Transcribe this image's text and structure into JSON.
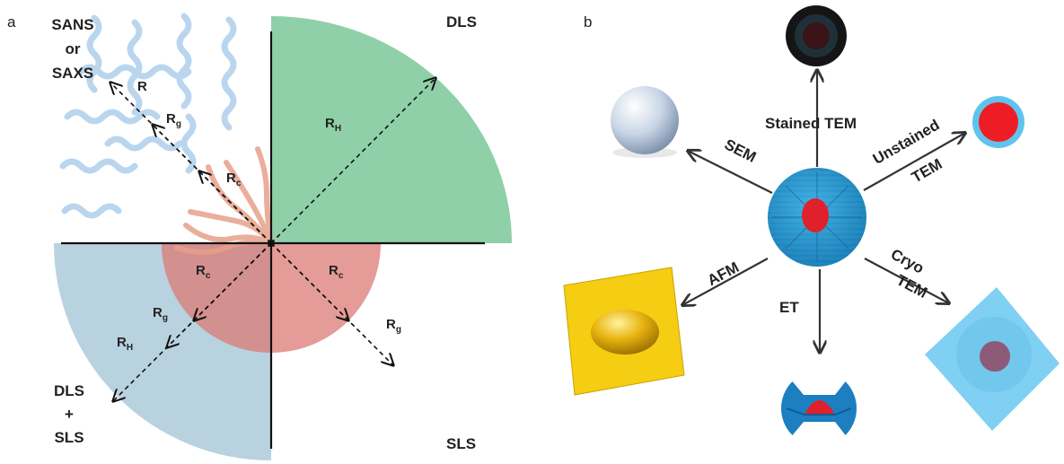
{
  "panels": {
    "a": {
      "letter": "a",
      "corner_labels": {
        "top_left_line1": "SANS",
        "top_left_line2": "or",
        "top_left_line3": "SAXS",
        "top_right": "DLS",
        "bottom_left_line1": "DLS",
        "bottom_left_line2": "+",
        "bottom_left_line3": "SLS",
        "bottom_right": "SLS"
      },
      "radius_labels": {
        "r": "R",
        "rg_tl": "R",
        "rg_tl_sub": "g",
        "rc_tl": "R",
        "rc_tl_sub": "c",
        "rh_tr": "R",
        "rh_tr_sub": "H",
        "rc_bl": "R",
        "rc_bl_sub": "c",
        "rg_bl": "R",
        "rg_bl_sub": "g",
        "rh_bl": "R",
        "rh_bl_sub": "H",
        "rc_br": "R",
        "rc_br_sub": "c",
        "rg_br": "R",
        "rg_br_sub": "g"
      },
      "colors": {
        "dls_green": "#8fd0a8",
        "core_red": "#e2908c",
        "shell_blue": "#b8d2e0",
        "corona_blue": "#b9d6ee"
      }
    },
    "b": {
      "letter": "b",
      "techniques": {
        "stained_tem": "Stained TEM",
        "sem": "SEM",
        "unstained_line1": "Unstained",
        "unstained_line2": "TEM",
        "afm": "AFM",
        "et": "ET",
        "cryo_line1": "Cryo",
        "cryo_line2": "TEM"
      },
      "colors": {
        "micelle_blue": "#2a9bd3",
        "core_red": "#e0202a",
        "afm_yellow": "#f2cc1a",
        "cryo_blue": "#7fd0f2"
      }
    }
  }
}
